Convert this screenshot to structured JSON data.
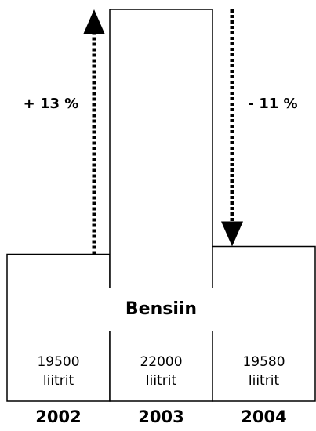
{
  "chart_data": {
    "type": "bar",
    "label": "Bensiin",
    "unit": "liitrit",
    "categories": [
      "2002",
      "2003",
      "2004"
    ],
    "values": [
      19500,
      22000,
      19580
    ],
    "color": "#ffffff",
    "ylim": [
      18000,
      22000
    ],
    "annotations": [
      "+ 13 %",
      "- 11 %"
    ]
  }
}
